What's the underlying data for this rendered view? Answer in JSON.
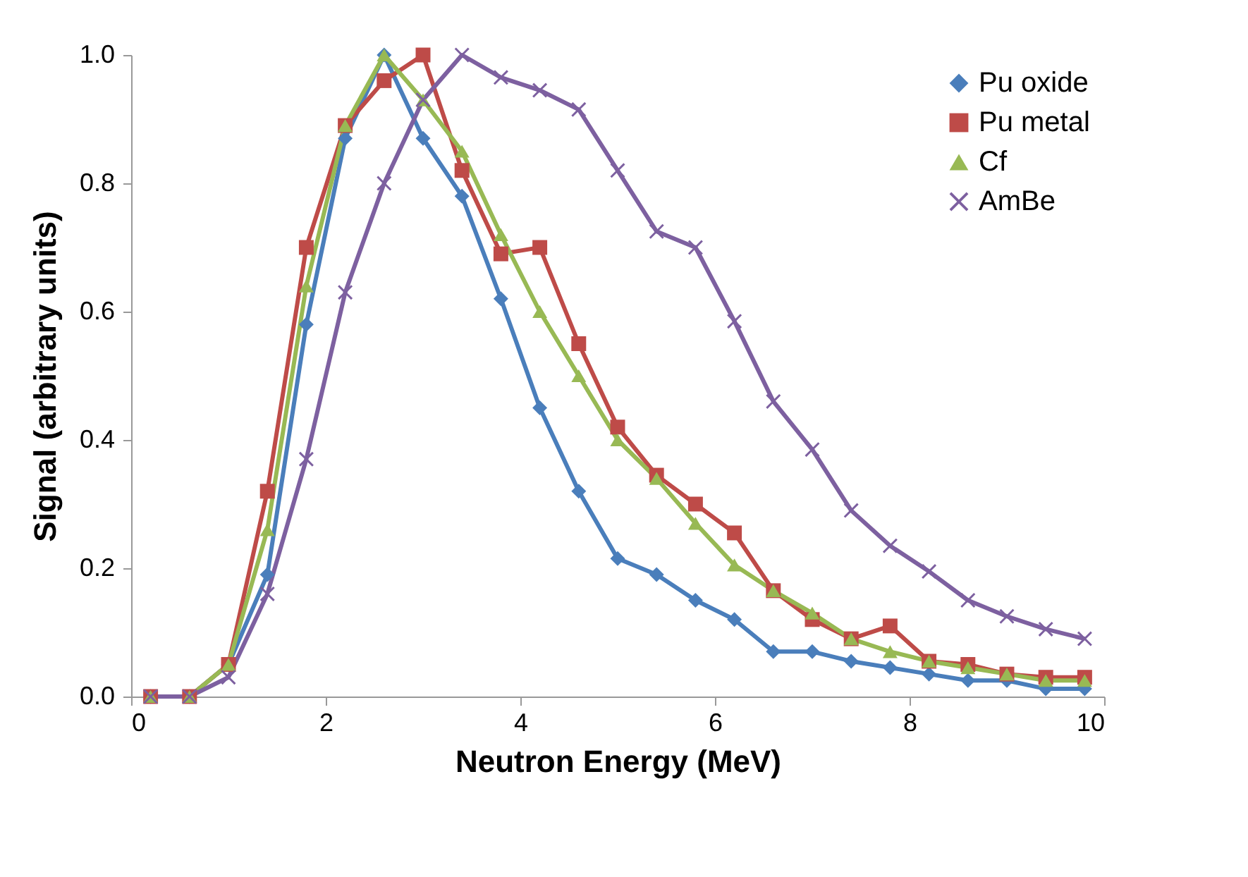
{
  "chart_data": {
    "type": "line",
    "xlabel": "Neutron Energy (MeV)",
    "ylabel": "Signal (arbitrary units)",
    "x": [
      0.2,
      0.6,
      1.0,
      1.4,
      1.8,
      2.2,
      2.6,
      3.0,
      3.4,
      3.8,
      4.2,
      4.6,
      5.0,
      5.4,
      5.8,
      6.2,
      6.6,
      7.0,
      7.4,
      7.8,
      8.2,
      8.6,
      9.0,
      9.4,
      9.8
    ],
    "series": [
      {
        "name": "Pu oxide",
        "color": "#4a7ebb",
        "marker": "diamond",
        "values": [
          0,
          0,
          0.05,
          0.19,
          0.58,
          0.87,
          1.0,
          0.87,
          0.78,
          0.62,
          0.45,
          0.32,
          0.215,
          0.19,
          0.15,
          0.12,
          0.07,
          0.07,
          0.055,
          0.045,
          0.035,
          0.025,
          0.025,
          0.012,
          0.012
        ]
      },
      {
        "name": "Pu metal",
        "color": "#be4b48",
        "marker": "square",
        "values": [
          0,
          0,
          0.05,
          0.32,
          0.7,
          0.89,
          0.96,
          1.0,
          0.82,
          0.69,
          0.7,
          0.55,
          0.42,
          0.345,
          0.3,
          0.255,
          0.165,
          0.12,
          0.09,
          0.11,
          0.055,
          0.05,
          0.035,
          0.03,
          0.03
        ]
      },
      {
        "name": "Cf",
        "color": "#98b954",
        "marker": "triangle",
        "values": [
          0,
          0,
          0.05,
          0.26,
          0.64,
          0.89,
          1.0,
          0.93,
          0.85,
          0.72,
          0.6,
          0.5,
          0.4,
          0.34,
          0.27,
          0.205,
          0.165,
          0.13,
          0.09,
          0.07,
          0.055,
          0.045,
          0.035,
          0.025,
          0.025
        ]
      },
      {
        "name": "AmBe",
        "color": "#7d60a0",
        "marker": "cross",
        "values": [
          0,
          0,
          0.03,
          0.16,
          0.37,
          0.63,
          0.8,
          0.93,
          1.0,
          0.965,
          0.945,
          0.915,
          0.82,
          0.725,
          0.7,
          0.585,
          0.46,
          0.385,
          0.29,
          0.235,
          0.195,
          0.15,
          0.125,
          0.105,
          0.09
        ]
      }
    ],
    "xlim": [
      0,
      10
    ],
    "xticks": [
      0,
      2,
      4,
      6,
      8,
      10
    ],
    "ylim": [
      0,
      1
    ],
    "yticks": [
      {
        "value": 0,
        "label": "0.0"
      },
      {
        "value": 0.2,
        "label": "0.2"
      },
      {
        "value": 0.4,
        "label": "0.4"
      },
      {
        "value": 0.6,
        "label": "0.6"
      },
      {
        "value": 0.8,
        "label": "0.8"
      },
      {
        "value": 1,
        "label": "1.0"
      }
    ],
    "grid": false,
    "legend": "top right",
    "line_style": "solid"
  }
}
